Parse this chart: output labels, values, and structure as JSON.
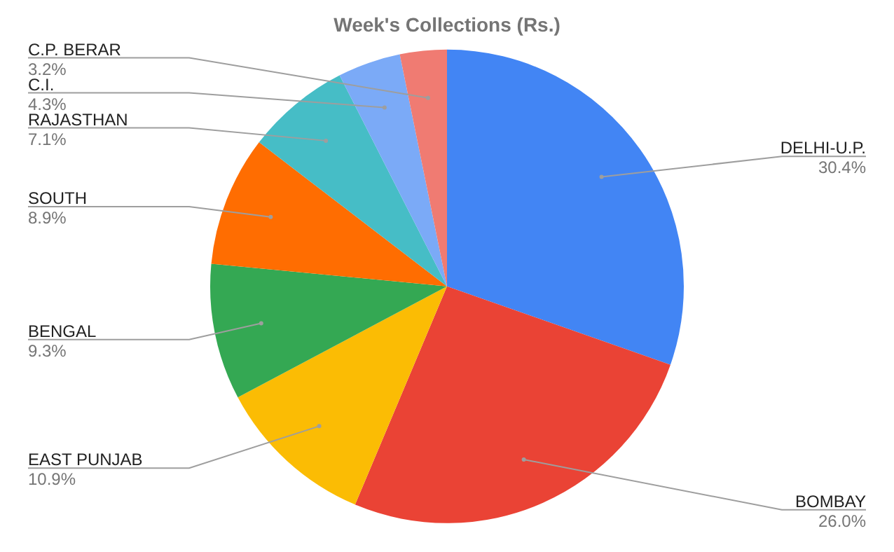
{
  "chart_data": {
    "type": "pie",
    "title": "Week's Collections (Rs.)",
    "categories": [
      "DELHI-U.P.",
      "BOMBAY",
      "EAST PUNJAB",
      "BENGAL",
      "SOUTH",
      "RAJASTHAN",
      "C.I.",
      "C.P. BERAR"
    ],
    "values": [
      30.4,
      26.0,
      10.9,
      9.3,
      8.9,
      7.1,
      4.3,
      3.2
    ],
    "colors": [
      "#4285f4",
      "#ea4335",
      "#fbbc04",
      "#34a853",
      "#ff6d01",
      "#46bdc6",
      "#7baaf7",
      "#f07b72"
    ],
    "value_labels": [
      "30.4%",
      "26.0%",
      "10.9%",
      "9.3%",
      "8.9%",
      "7.1%",
      "4.3%",
      "3.2%"
    ],
    "legend": false
  }
}
